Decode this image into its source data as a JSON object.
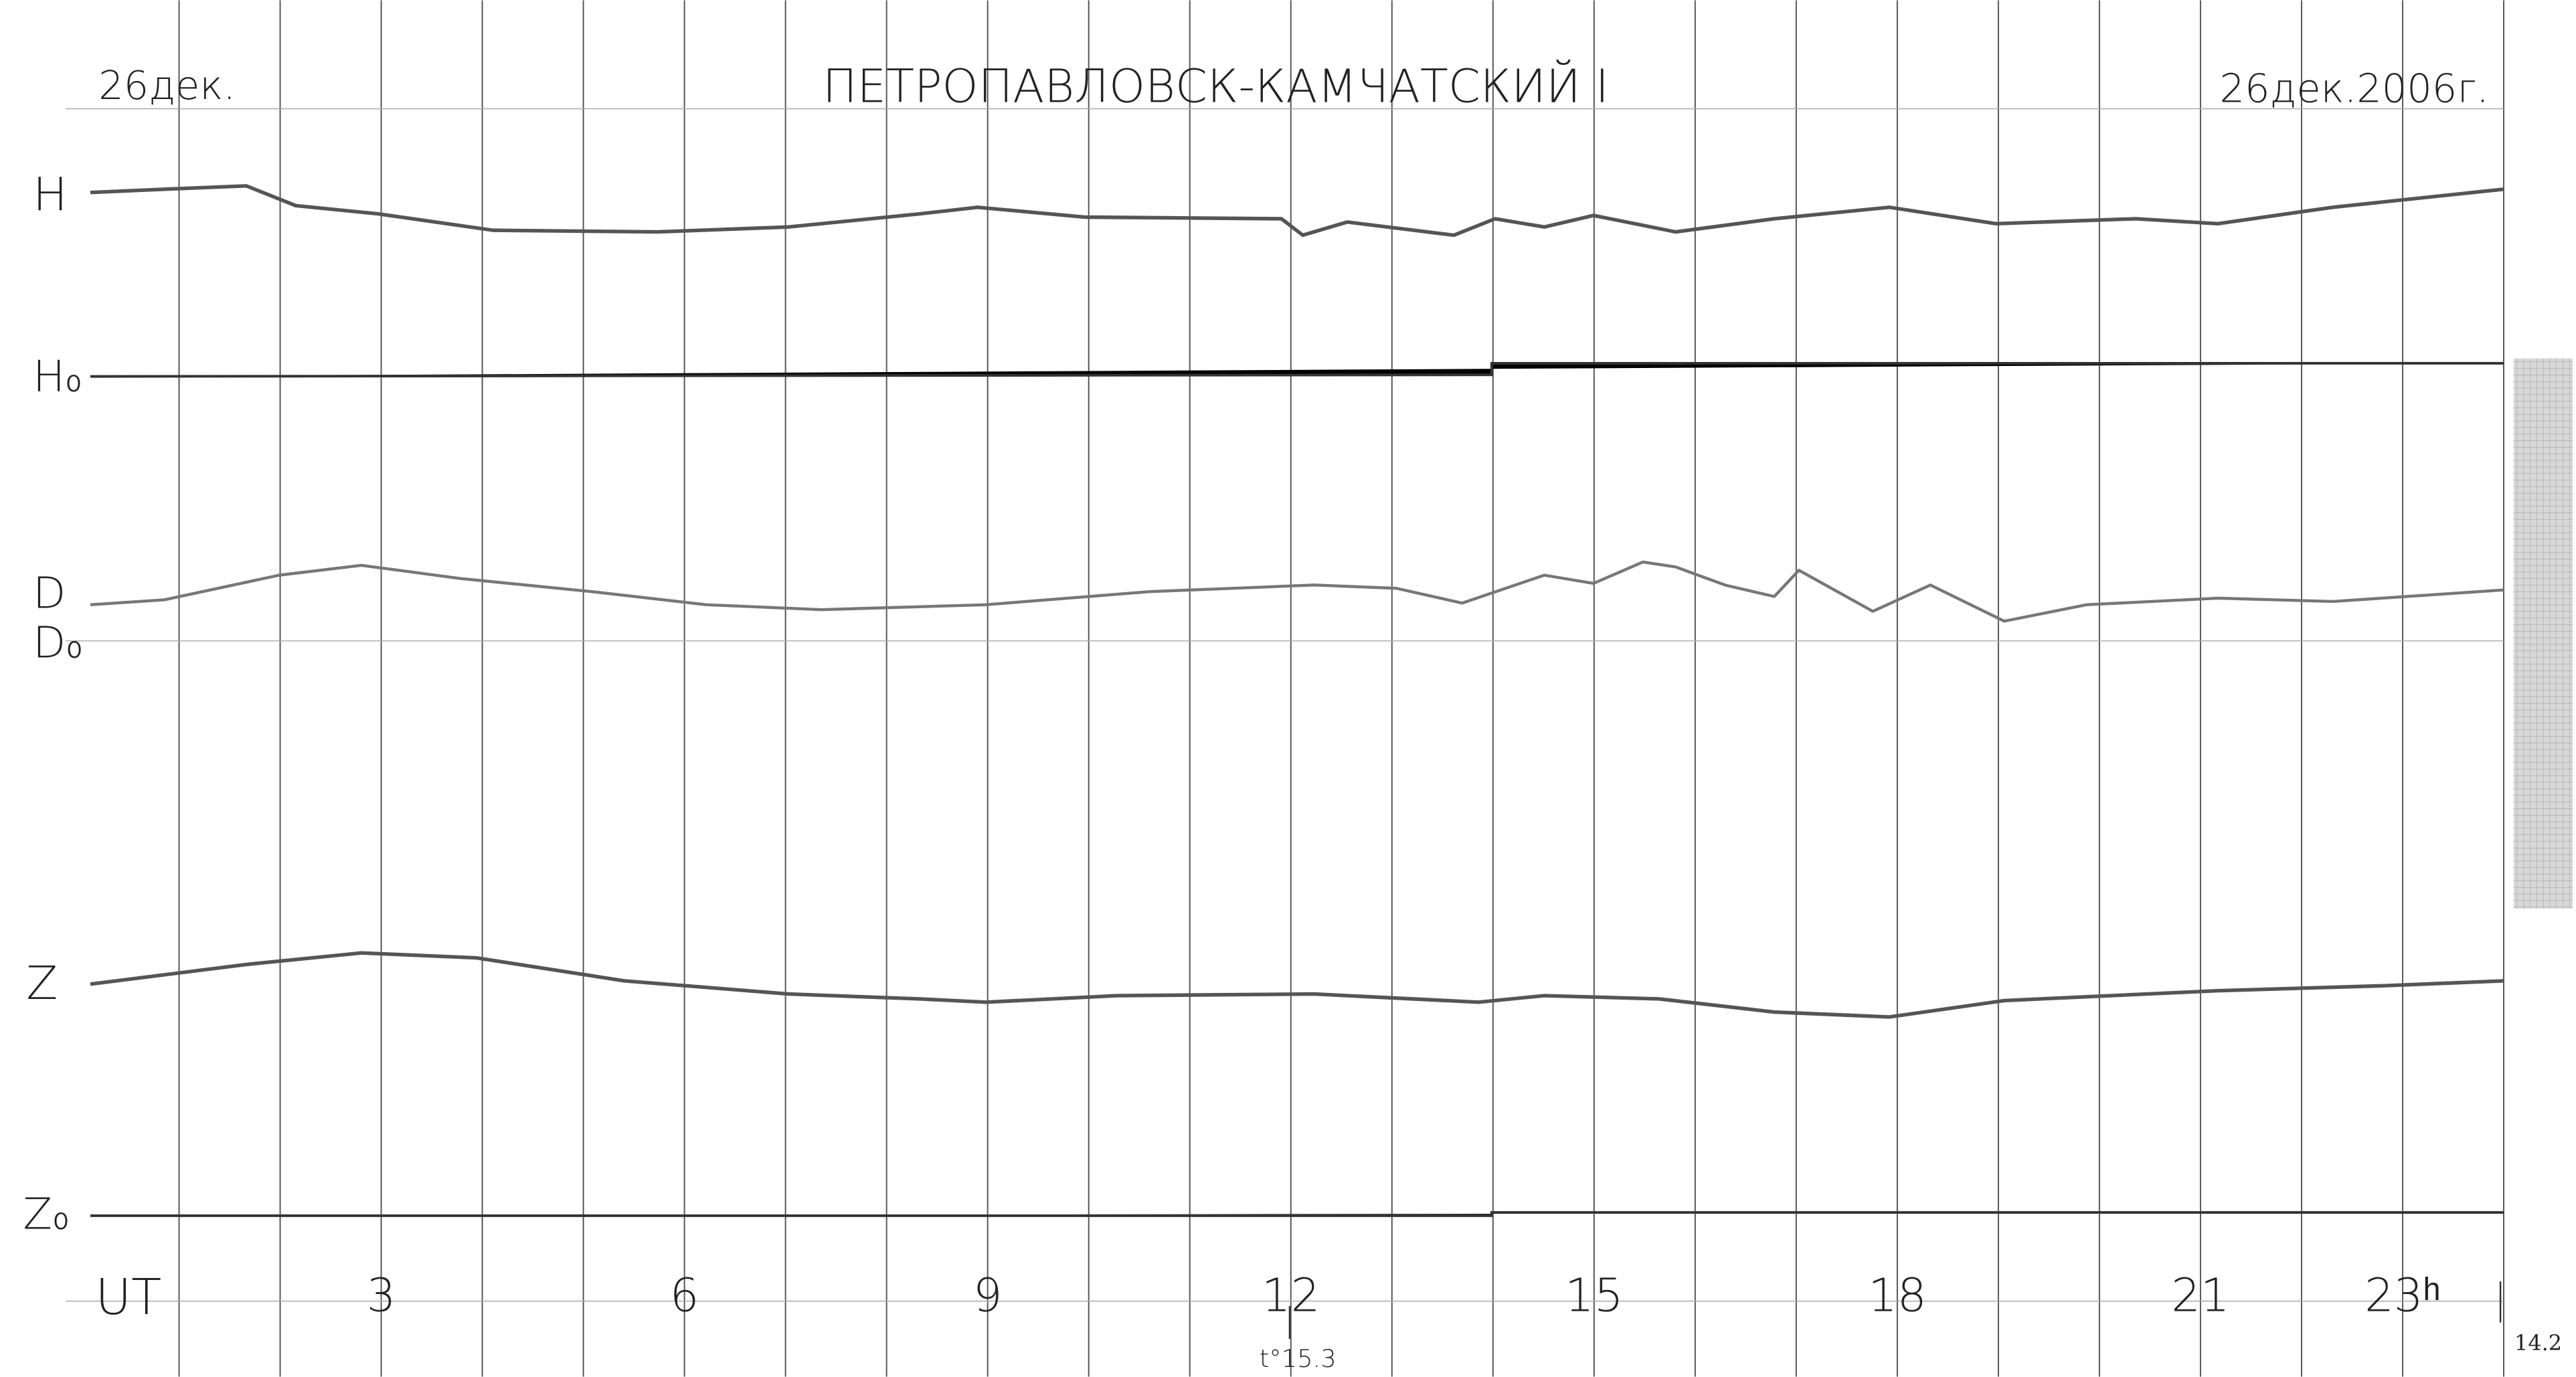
{
  "header": {
    "date_left": "26дек.",
    "title": "ПЕТРОПАВЛОВСК-КАМЧАТСКИЙ I",
    "date_right": "26дек.2006г."
  },
  "trace_labels": {
    "h": "H",
    "h0": "H₀",
    "d": "D",
    "d0": "D₀",
    "z": "Z",
    "z0": "Z₀"
  },
  "time_axis": {
    "unit": "UT",
    "hours": [
      "3",
      "6",
      "9",
      "12",
      "15",
      "18",
      "21",
      "23ʰ"
    ]
  },
  "notes": {
    "temperature": "t°15.3",
    "corner": "14.2"
  }
}
